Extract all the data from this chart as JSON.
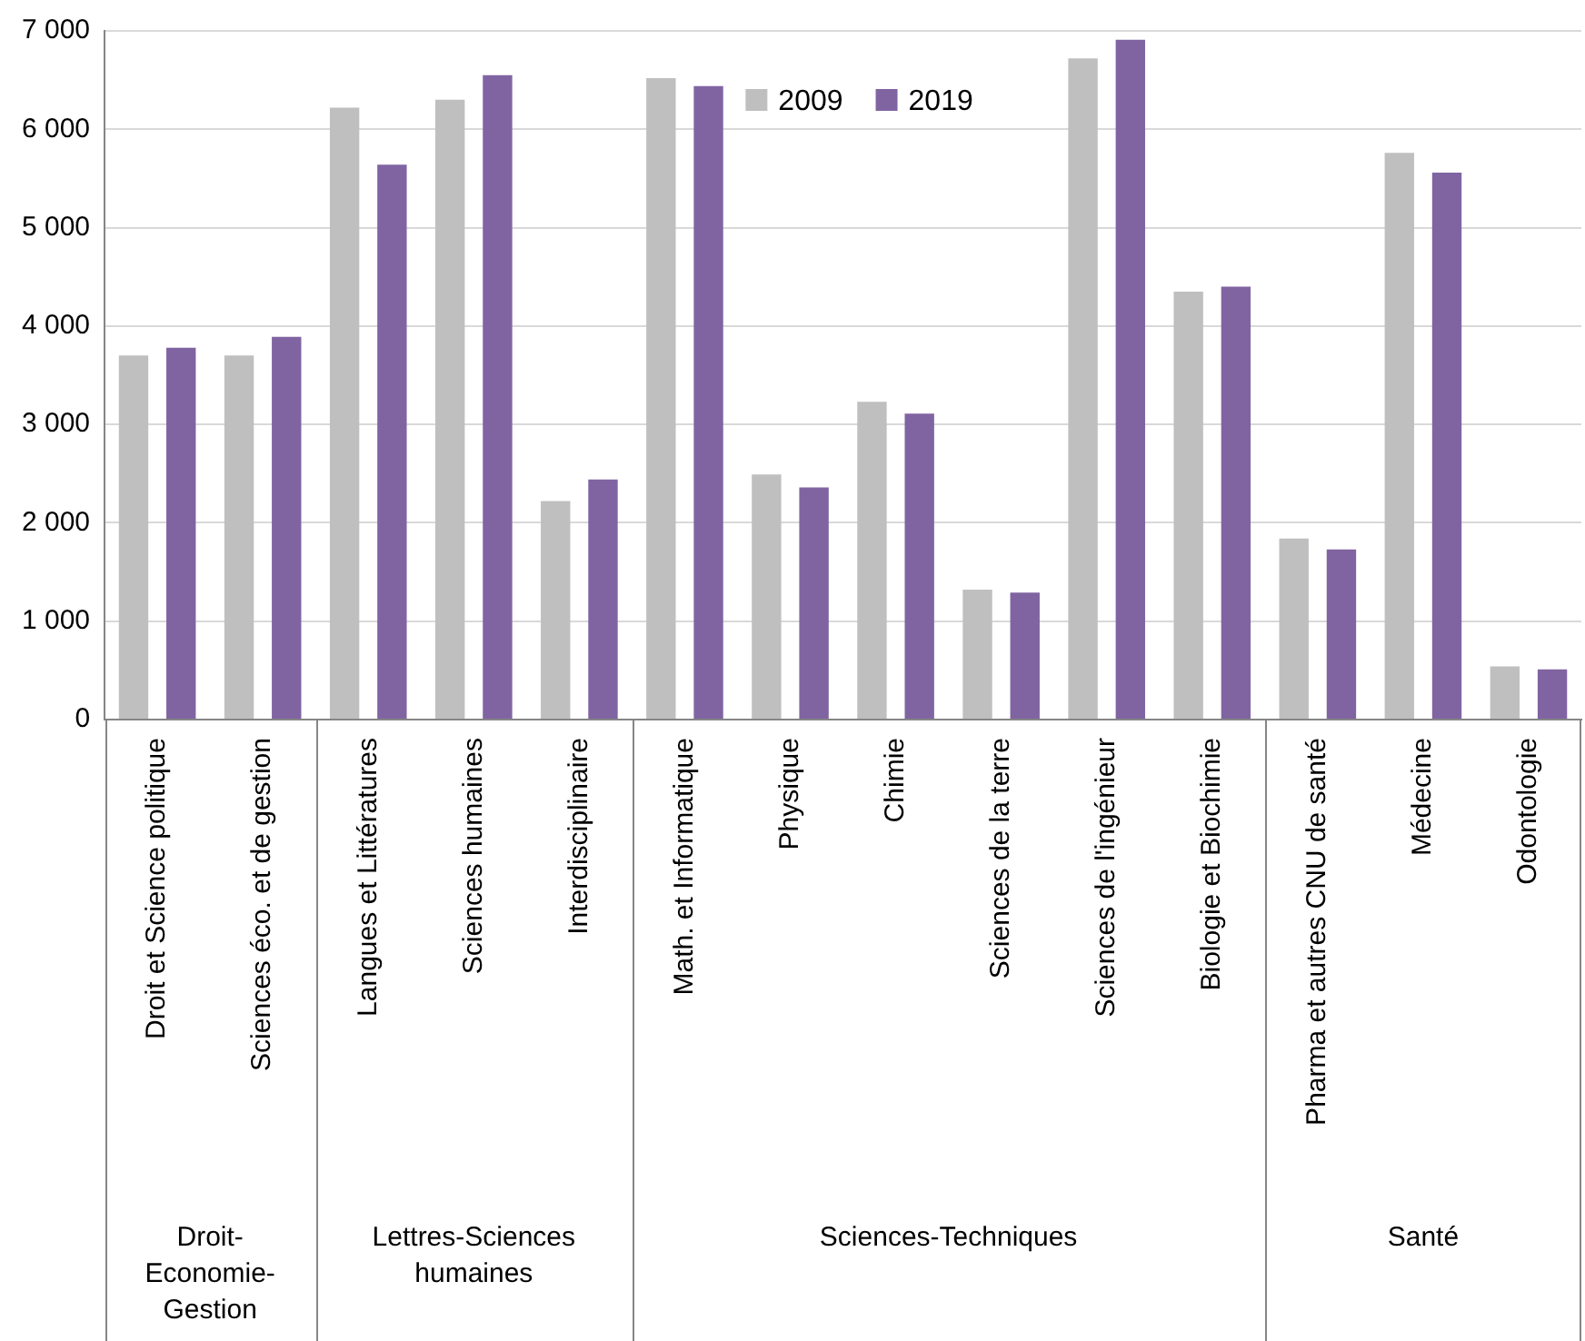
{
  "chart_data": {
    "type": "bar",
    "categories": [
      "Droit et Science politique",
      "Sciences éco. et de gestion",
      "Langues et Littératures",
      "Sciences humaines",
      "Interdisciplinaire",
      "Math. et Informatique",
      "Physique",
      "Chimie",
      "Sciences de la terre",
      "Sciences de l'ingénieur",
      "Biologie et Biochimie",
      "Pharma et autres CNU de santé",
      "Médecine",
      "Odontologie"
    ],
    "series": [
      {
        "name": "2009",
        "color": "#bfbfbf",
        "values": [
          3700,
          3700,
          6220,
          6300,
          2220,
          6520,
          2490,
          3230,
          1320,
          6720,
          4350,
          1840,
          5760,
          540
        ]
      },
      {
        "name": "2019",
        "color": "#8064a2",
        "values": [
          3780,
          3890,
          5640,
          6550,
          2440,
          6440,
          2360,
          3110,
          1290,
          6910,
          4400,
          1730,
          5560,
          510
        ]
      }
    ],
    "ylim": [
      0,
      7000
    ],
    "yticks": [
      {
        "value": 0,
        "label": "0"
      },
      {
        "value": 1000,
        "label": "1 000"
      },
      {
        "value": 2000,
        "label": "2 000"
      },
      {
        "value": 3000,
        "label": "3 000"
      },
      {
        "value": 4000,
        "label": "4 000"
      },
      {
        "value": 5000,
        "label": "5 000"
      },
      {
        "value": 6000,
        "label": "6 000"
      },
      {
        "value": 7000,
        "label": "7 000"
      }
    ],
    "grid": "y",
    "legend": "top",
    "annotations": [
      "Droit-Economie-Gestion",
      "Lettres-Sciences humaines",
      "Sciences-Techniques",
      "Santé"
    ]
  }
}
